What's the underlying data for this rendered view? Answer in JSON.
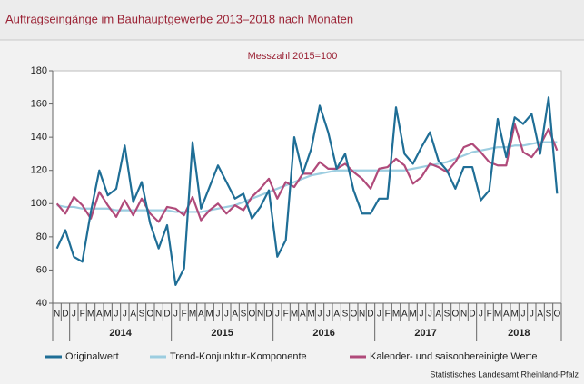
{
  "chart_data": {
    "type": "line",
    "title": "Auftragseingänge im Bauhauptgewerbe 2013–2018 nach Monaten",
    "subtitle": "Messzahl 2015=100",
    "source": "Statistisches Landesamt Rheinland-Pfalz",
    "categories": [
      "N",
      "D",
      "J",
      "F",
      "M",
      "A",
      "M",
      "J",
      "J",
      "A",
      "S",
      "O",
      "N",
      "D",
      "J",
      "F",
      "M",
      "A",
      "M",
      "J",
      "J",
      "A",
      "S",
      "O",
      "N",
      "D",
      "J",
      "F",
      "M",
      "A",
      "M",
      "J",
      "J",
      "A",
      "S",
      "O",
      "N",
      "D",
      "J",
      "F",
      "M",
      "A",
      "M",
      "J",
      "J",
      "A",
      "S",
      "O",
      "N",
      "D",
      "J",
      "F",
      "M",
      "A",
      "M",
      "J",
      "J",
      "A",
      "S",
      "O"
    ],
    "year_labels": [
      "2014",
      "2015",
      "2016",
      "2017",
      "2018"
    ],
    "ylim": [
      40,
      180
    ],
    "yticks": [
      40,
      60,
      80,
      100,
      120,
      140,
      160,
      180
    ],
    "grid": false,
    "series": [
      {
        "name": "Originalwert",
        "color": "#1f6e96",
        "values": [
          73,
          84,
          68,
          65,
          95,
          120,
          105,
          109,
          135,
          101,
          113,
          88,
          73,
          87,
          51,
          61,
          137,
          97,
          110,
          123,
          113,
          103,
          106,
          91,
          98,
          108,
          68,
          78,
          140,
          118,
          133,
          159,
          143,
          121,
          130,
          108,
          94,
          94,
          103,
          103,
          158,
          130,
          124,
          134,
          143,
          126,
          120,
          109,
          122,
          122,
          102,
          108,
          151,
          128,
          152,
          148,
          154,
          130,
          164,
          106
        ]
      },
      {
        "name": "Trend-Konjunktur-Komponente",
        "color": "#9ccde0",
        "values": [
          99,
          98,
          98,
          97,
          97,
          97,
          97,
          96,
          96,
          96,
          96,
          96,
          96,
          96,
          95,
          95,
          95,
          95,
          96,
          97,
          98,
          99,
          101,
          103,
          105,
          107,
          109,
          111,
          113,
          115,
          117,
          118,
          119,
          120,
          120,
          120,
          120,
          120,
          120,
          120,
          120,
          120,
          121,
          122,
          123,
          124,
          125,
          127,
          129,
          131,
          132,
          133,
          134,
          134,
          135,
          135,
          136,
          137,
          137,
          137
        ]
      },
      {
        "name": "Kalender- und saisonbereinigte Werte",
        "color": "#b04a7a",
        "values": [
          100,
          94,
          104,
          99,
          91,
          107,
          99,
          92,
          102,
          93,
          103,
          94,
          89,
          98,
          97,
          93,
          104,
          90,
          96,
          100,
          94,
          99,
          96,
          104,
          109,
          115,
          103,
          113,
          110,
          118,
          118,
          125,
          121,
          121,
          124,
          119,
          115,
          109,
          121,
          122,
          127,
          123,
          112,
          116,
          124,
          122,
          119,
          125,
          134,
          136,
          131,
          125,
          123,
          123,
          148,
          131,
          128,
          135,
          145,
          132
        ]
      }
    ]
  }
}
